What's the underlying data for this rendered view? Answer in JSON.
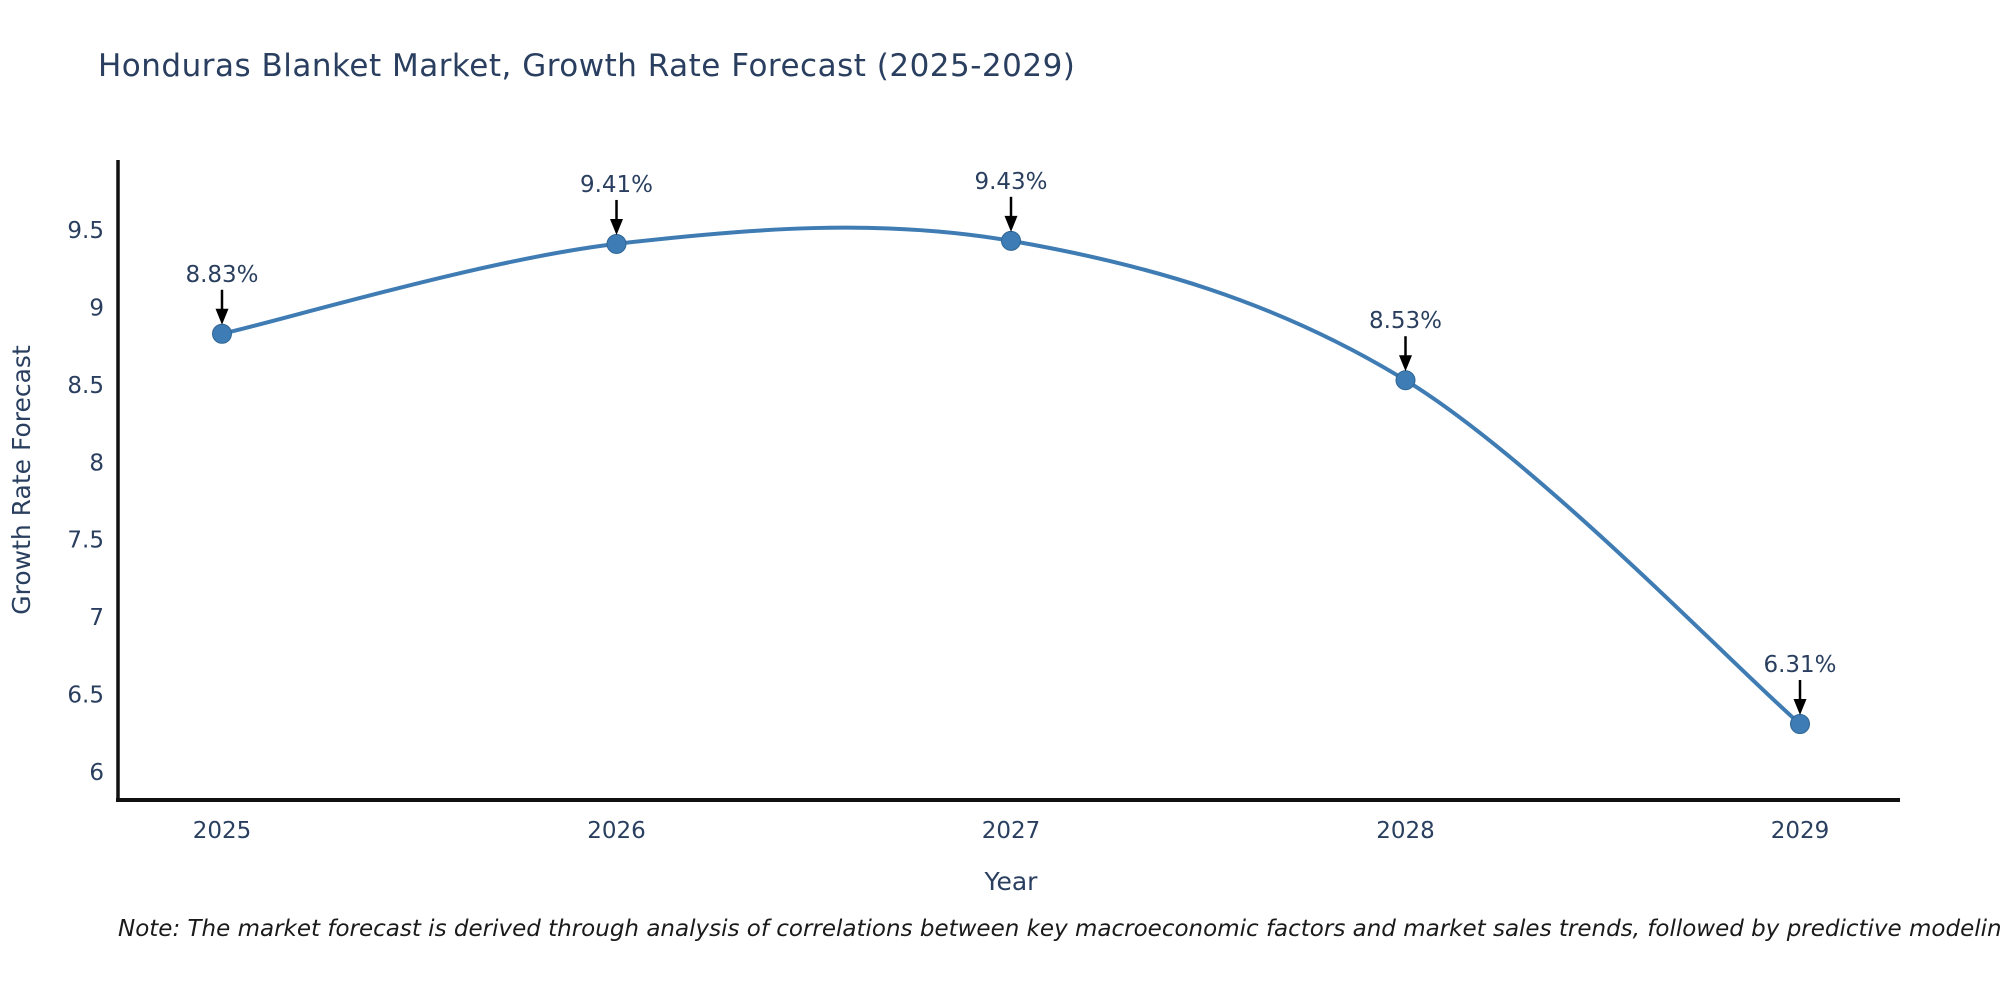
{
  "title": "Honduras Blanket Market, Growth Rate Forecast (2025-2029)",
  "note": "Note: The market forecast is derived through analysis of correlations between key macroeconomic factors and market sales trends, followed by predictive modeling to project future sales",
  "chart_data": {
    "type": "line",
    "line_shape": "spline",
    "title": "Honduras Blanket Market, Growth Rate Forecast (2025-2029)",
    "xlabel": "Year",
    "ylabel": "Growth Rate Forecast",
    "x": [
      2025,
      2026,
      2027,
      2028,
      2029
    ],
    "y": [
      8.83,
      9.41,
      9.43,
      8.53,
      6.31
    ],
    "point_labels": [
      "8.83%",
      "9.41%",
      "9.43%",
      "8.53%",
      "6.31%"
    ],
    "xticks": [
      "2025",
      "2026",
      "2027",
      "2028",
      "2029"
    ],
    "yticks": [
      9.5,
      9,
      8.5,
      8,
      7.5,
      7,
      6.5,
      6
    ],
    "ylim": [
      5.82,
      9.98
    ],
    "grid": false,
    "legend": false,
    "colors": {
      "line": "#3f7cb3",
      "marker_fill": "#3e7cb5",
      "marker_edge": "#2f6694",
      "text": "#2a3f5f",
      "axis": "#111111",
      "arrow": "#000000"
    }
  }
}
